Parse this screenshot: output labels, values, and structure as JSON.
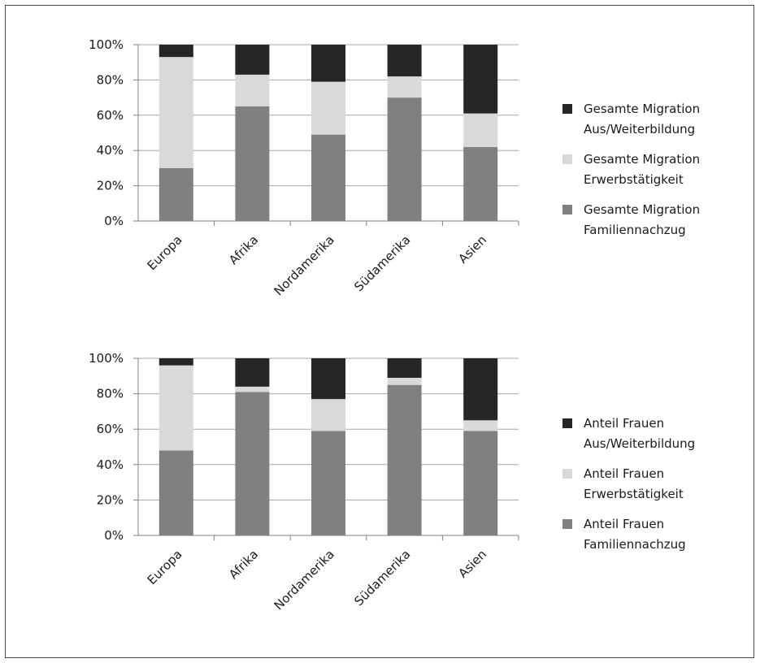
{
  "chart_data": [
    {
      "type": "bar",
      "stacked": true,
      "categories": [
        "Europa",
        "Afrika",
        "Nordamerika",
        "Südamerika",
        "Asien"
      ],
      "ylim": [
        0,
        100
      ],
      "yticks": [
        "0%",
        "20%",
        "40%",
        "60%",
        "80%",
        "100%"
      ],
      "grid": true,
      "legend_position": "right",
      "series": [
        {
          "name": "Gesamte Migration Familiennachzug",
          "legend_lines": [
            "Gesamte Migration",
            "Familiennachzug"
          ],
          "color": "#808080",
          "values": [
            30,
            65,
            49,
            70,
            42
          ]
        },
        {
          "name": "Gesamte Migration Erwerbstätigkeit",
          "legend_lines": [
            "Gesamte Migration",
            "Erwerbstätigkeit"
          ],
          "color": "#d9d9d9",
          "values": [
            63,
            18,
            30,
            12,
            19
          ]
        },
        {
          "name": "Gesamte Migration Aus/Weiterbildung",
          "legend_lines": [
            "Gesamte Migration",
            "Aus/Weiterbildung"
          ],
          "color": "#262626",
          "values": [
            7,
            17,
            21,
            18,
            39
          ]
        }
      ]
    },
    {
      "type": "bar",
      "stacked": true,
      "categories": [
        "Europa",
        "Afrika",
        "Nordamerika",
        "Südamerika",
        "Asien"
      ],
      "ylim": [
        0,
        100
      ],
      "yticks": [
        "0%",
        "20%",
        "40%",
        "60%",
        "80%",
        "100%"
      ],
      "grid": true,
      "legend_position": "right",
      "series": [
        {
          "name": "Anteil Frauen Familiennachzug",
          "legend_lines": [
            "Anteil Frauen",
            "Familiennachzug"
          ],
          "color": "#808080",
          "values": [
            48,
            81,
            59,
            85,
            59
          ]
        },
        {
          "name": "Anteil Frauen Erwerbstätigkeit",
          "legend_lines": [
            "Anteil Frauen",
            "Erwerbstätigkeit"
          ],
          "color": "#d9d9d9",
          "values": [
            48,
            3,
            18,
            4,
            6
          ]
        },
        {
          "name": "Anteil Frauen Aus/Weiterbildung",
          "legend_lines": [
            "Anteil Frauen",
            "Aus/Weiterbildung"
          ],
          "color": "#262626",
          "values": [
            4,
            16,
            23,
            11,
            35
          ]
        }
      ]
    }
  ]
}
